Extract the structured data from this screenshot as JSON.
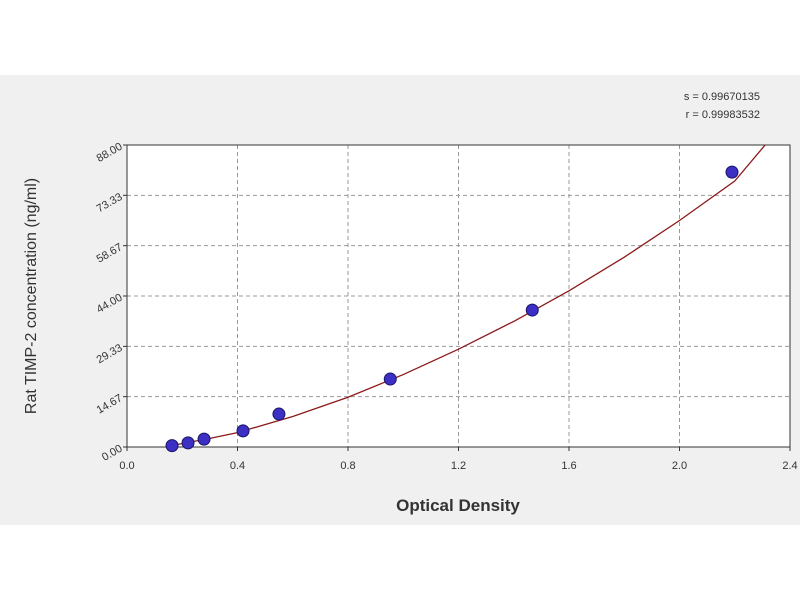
{
  "chart_data": {
    "type": "scatter",
    "x_label": "Optical Density",
    "y_label": "Rat TIMP-2 concentration (ng/ml)",
    "annotations": [
      "s = 0.99670135",
      "r = 0.99983532"
    ],
    "xlim": [
      0,
      2.4
    ],
    "ylim": [
      0,
      88
    ],
    "xticks": [
      {
        "value": 0,
        "label": "0.0"
      },
      0.4,
      0.8,
      1.2,
      1.6,
      {
        "value": 2,
        "label": "2.0"
      },
      2.4
    ],
    "yticks": [
      {
        "value": 0,
        "label": "0.00"
      },
      14.67,
      29.33,
      {
        "value": 44,
        "label": "44.00"
      },
      58.67,
      73.33,
      {
        "value": 88,
        "label": "88.00"
      }
    ],
    "grid": true,
    "series": [
      {
        "color": "#3b2fc4",
        "x": [
          0.163,
          0.221,
          0.279,
          0.42,
          0.55,
          0.953,
          1.467,
          2.19
        ],
        "values": [
          0.4,
          1.2,
          2.3,
          4.7,
          9.6,
          19.8,
          39.9,
          80.1
        ]
      }
    ],
    "fit": {
      "color": "#8b1a1a",
      "x": [
        0.16,
        0.3,
        0.4,
        0.6,
        0.8,
        1.0,
        1.2,
        1.4,
        1.6,
        1.8,
        2.0,
        2.2,
        2.31
      ],
      "values": [
        0.4,
        2.5,
        4.2,
        8.9,
        14.5,
        21.1,
        28.5,
        36.6,
        45.5,
        55.3,
        66,
        77.5,
        88
      ]
    }
  }
}
